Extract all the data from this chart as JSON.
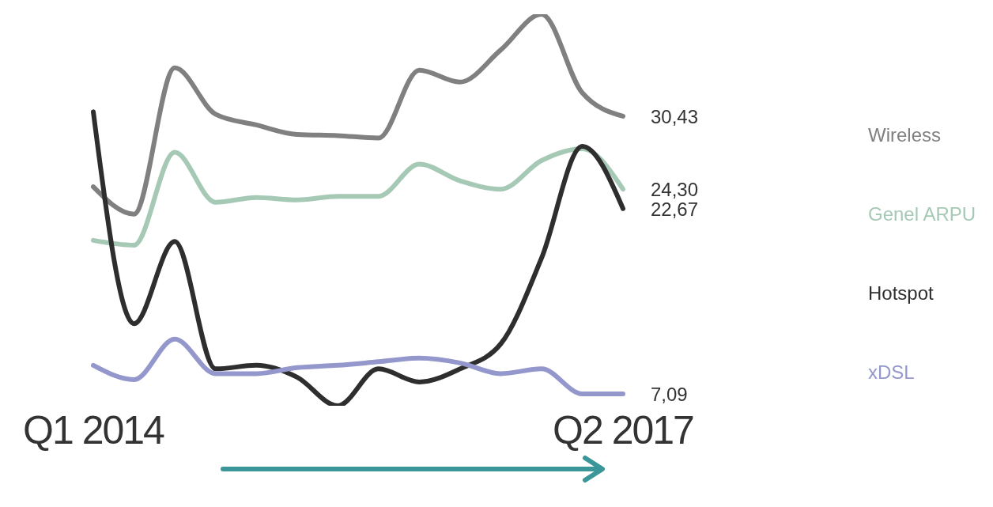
{
  "chart_data": {
    "type": "line",
    "categories": [
      "Q1 2014",
      null,
      null,
      null,
      null,
      null,
      null,
      null,
      null,
      null,
      null,
      null,
      null,
      "Q2 2017"
    ],
    "tick_labels": "x",
    "legend": "right",
    "marker": "none",
    "line_style": "solid",
    "series": [
      {
        "name": "Wireless",
        "color": "#808080",
        "values": [
          24.5,
          22.2,
          34.5,
          30.6,
          29.7,
          28.9,
          28.8,
          28.6,
          34.3,
          33.3,
          36.0,
          39.0,
          32.4,
          30.43
        ],
        "value_labels": [
          null,
          null,
          null,
          null,
          null,
          null,
          null,
          null,
          null,
          null,
          null,
          null,
          null,
          "30,43"
        ]
      },
      {
        "name": "Genel ARPU",
        "color": "#a5c9b5",
        "values": [
          20.0,
          19.6,
          27.4,
          23.2,
          23.6,
          23.4,
          23.7,
          23.7,
          26.4,
          25.0,
          24.3,
          26.7,
          27.7,
          24.3
        ],
        "value_labels": [
          null,
          null,
          null,
          null,
          null,
          null,
          null,
          null,
          null,
          null,
          null,
          null,
          null,
          "24,30"
        ]
      },
      {
        "name": "Hotspot",
        "color": "#2e2e2e",
        "values": [
          30.8,
          13.0,
          19.9,
          9.2,
          9.5,
          8.5,
          6.1,
          9.2,
          8.1,
          9.2,
          11.3,
          18.5,
          27.9,
          22.67
        ],
        "value_labels": [
          null,
          null,
          null,
          null,
          null,
          null,
          null,
          null,
          null,
          null,
          null,
          null,
          null,
          "22,67"
        ]
      },
      {
        "name": "xDSL",
        "color": "#9397cb",
        "values": [
          9.5,
          8.3,
          11.7,
          8.8,
          8.8,
          9.3,
          9.5,
          9.8,
          10.1,
          9.7,
          8.8,
          9.2,
          7.1,
          7.09
        ],
        "value_labels": [
          null,
          null,
          null,
          null,
          null,
          null,
          null,
          null,
          null,
          null,
          null,
          null,
          null,
          "7,09"
        ]
      }
    ]
  }
}
